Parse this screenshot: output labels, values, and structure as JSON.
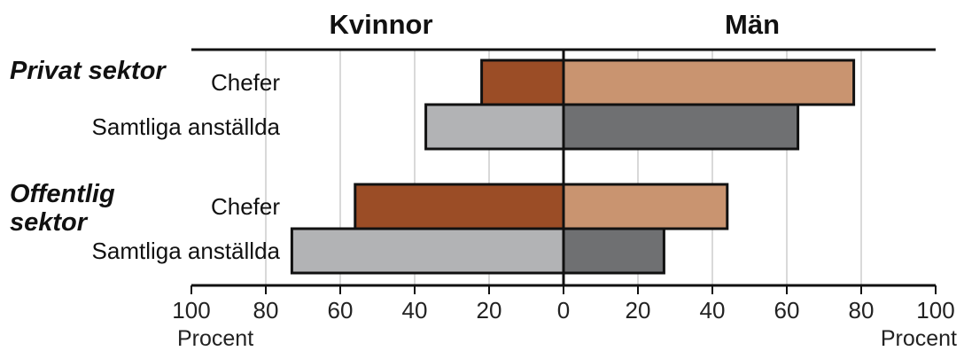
{
  "chart_data": {
    "type": "bar",
    "orientation": "horizontal-diverging",
    "title": "",
    "left_header": "Kvinnor",
    "right_header": "Män",
    "groups": [
      {
        "name": "Privat sektor",
        "name_lines": [
          "Privat sektor"
        ],
        "rows": [
          {
            "label": "Chefer",
            "kvinnor": 22,
            "man": 78,
            "kind": "chefer"
          },
          {
            "label": "Samtliga anställda",
            "kvinnor": 37,
            "man": 63,
            "kind": "samtliga"
          }
        ]
      },
      {
        "name": "Offentlig sektor",
        "name_lines": [
          "Offentlig",
          "sektor"
        ],
        "rows": [
          {
            "label": "Chefer",
            "kvinnor": 56,
            "man": 44,
            "kind": "chefer"
          },
          {
            "label": "Samtliga anställda",
            "kvinnor": 73,
            "man": 27,
            "kind": "samtliga"
          }
        ]
      }
    ],
    "x_ticks": [
      100,
      80,
      60,
      40,
      20,
      0,
      20,
      40,
      60,
      80,
      100
    ],
    "xlim": [
      -100,
      100
    ],
    "xlabel_left": "Procent",
    "xlabel_right": "Procent",
    "grid": true,
    "colors": {
      "chefer_kvinnor": "#9b4d26",
      "chefer_man": "#c99470",
      "samtliga_kvinnor": "#b2b3b5",
      "samtliga_man": "#6f7072",
      "grid": "#d9d9d9",
      "axis": "#111111"
    }
  }
}
